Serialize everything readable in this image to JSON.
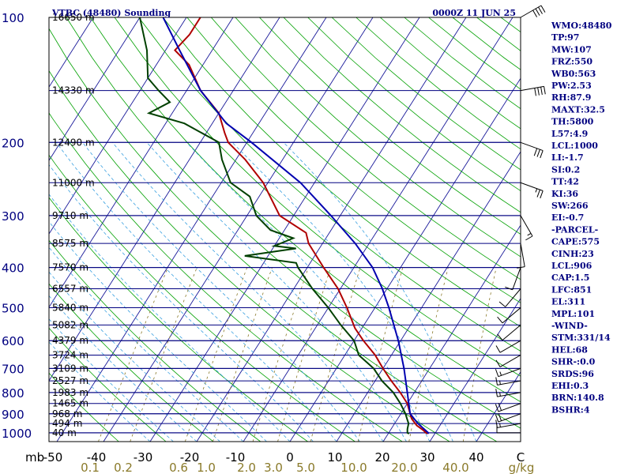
{
  "header": {
    "station": "VTBC (48480) Sounding",
    "time": "0000Z 11 JUN 25"
  },
  "chart_data": {
    "type": "line",
    "title": "VTBC (48480) Sounding",
    "x_axis_corner_label": "mb",
    "mixing_ratio_unit": "g/kg",
    "temperature_ticks": [
      "-50",
      "-40",
      "-30",
      "-20",
      "-10",
      "0",
      "10",
      "20",
      "30",
      "40",
      "C"
    ],
    "pressure_ticks": [
      {
        "p": 100,
        "label": "100"
      },
      {
        "p": 200,
        "label": "200"
      },
      {
        "p": 300,
        "label": "300"
      },
      {
        "p": 400,
        "label": "400"
      },
      {
        "p": 500,
        "label": "500"
      },
      {
        "p": 600,
        "label": "600"
      },
      {
        "p": 700,
        "label": "700"
      },
      {
        "p": 800,
        "label": "800"
      },
      {
        "p": 900,
        "label": "900"
      },
      {
        "p": 1000,
        "label": "1000"
      }
    ],
    "height_levels": [
      {
        "p": 100,
        "label": "16650 m"
      },
      {
        "p": 150,
        "label": "14330 m"
      },
      {
        "p": 200,
        "label": "12490 m"
      },
      {
        "p": 250,
        "label": "11000 m"
      },
      {
        "p": 300,
        "label": "9710 m"
      },
      {
        "p": 350,
        "label": "8575 m"
      },
      {
        "p": 400,
        "label": "7570 m"
      },
      {
        "p": 450,
        "label": "6557 m"
      },
      {
        "p": 500,
        "label": "5840 m"
      },
      {
        "p": 550,
        "label": "5082 m"
      },
      {
        "p": 600,
        "label": "4379 m"
      },
      {
        "p": 650,
        "label": "3724 m"
      },
      {
        "p": 700,
        "label": "3109 m"
      },
      {
        "p": 750,
        "label": "2527 m"
      },
      {
        "p": 800,
        "label": "1983 m"
      },
      {
        "p": 850,
        "label": "1465 m"
      },
      {
        "p": 900,
        "label": "968 m"
      },
      {
        "p": 950,
        "label": "494 m"
      },
      {
        "p": 1000,
        "label": "40 m"
      }
    ],
    "mixing_ratio_labels": [
      "0.1",
      "0.2",
      "0.6",
      "1.0",
      "2.0",
      "3.0",
      "5.0",
      "10.0",
      "20.0",
      "40.0",
      "g/kg"
    ],
    "series": [
      {
        "name": "Temperature",
        "color": "#b00000",
        "points": [
          [
            1005,
            28.5
          ],
          [
            1000,
            28
          ],
          [
            985,
            27
          ],
          [
            960,
            25
          ],
          [
            925,
            23
          ],
          [
            900,
            22
          ],
          [
            850,
            20
          ],
          [
            800,
            17
          ],
          [
            750,
            13.5
          ],
          [
            700,
            10
          ],
          [
            650,
            6.5
          ],
          [
            600,
            2
          ],
          [
            560,
            -1.5
          ],
          [
            500,
            -6
          ],
          [
            450,
            -10.5
          ],
          [
            400,
            -16.5
          ],
          [
            380,
            -19
          ],
          [
            350,
            -23
          ],
          [
            330,
            -25
          ],
          [
            300,
            -33
          ],
          [
            250,
            -41
          ],
          [
            220,
            -48
          ],
          [
            200,
            -54
          ],
          [
            190,
            -56
          ],
          [
            170,
            -60
          ],
          [
            150,
            -67
          ],
          [
            130,
            -73
          ],
          [
            120,
            -78
          ],
          [
            110,
            -77
          ],
          [
            100,
            -77
          ]
        ]
      },
      {
        "name": "Dewpoint",
        "color": "#004000",
        "points": [
          [
            1005,
            24.5
          ],
          [
            1000,
            24
          ],
          [
            980,
            23.5
          ],
          [
            950,
            23
          ],
          [
            925,
            22
          ],
          [
            900,
            21
          ],
          [
            850,
            18.5
          ],
          [
            800,
            15.5
          ],
          [
            750,
            11.5
          ],
          [
            700,
            8
          ],
          [
            650,
            3
          ],
          [
            600,
            0
          ],
          [
            550,
            -5
          ],
          [
            500,
            -10
          ],
          [
            450,
            -16
          ],
          [
            400,
            -22
          ],
          [
            390,
            -23
          ],
          [
            375,
            -35
          ],
          [
            360,
            -25
          ],
          [
            355,
            -30
          ],
          [
            340,
            -27
          ],
          [
            325,
            -33
          ],
          [
            300,
            -38
          ],
          [
            270,
            -42
          ],
          [
            250,
            -48
          ],
          [
            220,
            -53
          ],
          [
            200,
            -56
          ],
          [
            180,
            -66
          ],
          [
            170,
            -75
          ],
          [
            160,
            -72
          ],
          [
            150,
            -76
          ],
          [
            140,
            -80
          ],
          [
            120,
            -84
          ],
          [
            100,
            -90
          ]
        ]
      },
      {
        "name": "Parcel path",
        "color": "#0000b0",
        "points": [
          [
            1005,
            28.5
          ],
          [
            1000,
            28.5
          ],
          [
            950,
            25
          ],
          [
            900,
            22
          ],
          [
            850,
            20.3
          ],
          [
            800,
            18.5
          ],
          [
            700,
            14.5
          ],
          [
            600,
            9.5
          ],
          [
            500,
            3
          ],
          [
            450,
            -1
          ],
          [
            400,
            -6
          ],
          [
            350,
            -13
          ],
          [
            300,
            -22
          ],
          [
            250,
            -33
          ],
          [
            200,
            -49
          ],
          [
            180,
            -57
          ],
          [
            150,
            -67
          ],
          [
            120,
            -77
          ],
          [
            100,
            -85
          ]
        ]
      }
    ],
    "wind_barbs": [
      {
        "p": 1000,
        "dir": 270,
        "kt": 10
      },
      {
        "p": 950,
        "dir": 260,
        "kt": 15
      },
      {
        "p": 900,
        "dir": 250,
        "kt": 20
      },
      {
        "p": 850,
        "dir": 250,
        "kt": 20
      },
      {
        "p": 800,
        "dir": 260,
        "kt": 15
      },
      {
        "p": 750,
        "dir": 260,
        "kt": 15
      },
      {
        "p": 700,
        "dir": 250,
        "kt": 15
      },
      {
        "p": 650,
        "dir": 240,
        "kt": 10
      },
      {
        "p": 600,
        "dir": 240,
        "kt": 10
      },
      {
        "p": 550,
        "dir": 230,
        "kt": 10
      },
      {
        "p": 500,
        "dir": 230,
        "kt": 10
      },
      {
        "p": 450,
        "dir": 220,
        "kt": 10
      },
      {
        "p": 400,
        "dir": 200,
        "kt": 10
      },
      {
        "p": 350,
        "dir": 170,
        "kt": 10
      },
      {
        "p": 300,
        "dir": 150,
        "kt": 15
      },
      {
        "p": 250,
        "dir": 110,
        "kt": 25
      },
      {
        "p": 200,
        "dir": 110,
        "kt": 30
      },
      {
        "p": 150,
        "dir": 80,
        "kt": 40
      },
      {
        "p": 100,
        "dir": 60,
        "kt": 40
      }
    ]
  },
  "indices": [
    "WMO:48480",
    "TP:97",
    "MW:107",
    "FRZ:550",
    "WB0:563",
    "PW:2.53",
    "RH:87.9",
    "MAXT:32.5",
    "TH:5800",
    "L57:4.9",
    "LCL:1000",
    "LI:-1.7",
    "SI:0.2",
    "TT:42",
    "KI:36",
    "SW:266",
    "EI:-0.7",
    "-PARCEL-",
    "CAPE:575",
    "CINH:23",
    "LCL:906",
    "CAP:1.5",
    "LFC:851",
    "EL:311",
    "MPL:101",
    "-WIND-",
    "STM:331/14",
    "HEL:68",
    "SHR-:0.0",
    "SRDS:96",
    "EHI:0.3",
    "BRN:140.8",
    "BSHR:4"
  ]
}
